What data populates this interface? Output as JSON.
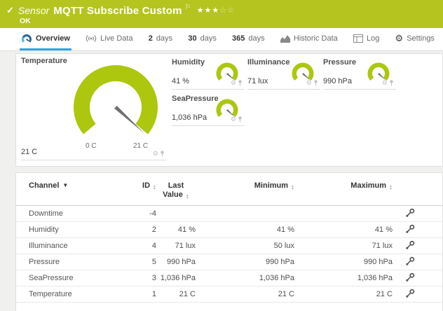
{
  "colors": {
    "status_ok_green": "#b5c41f",
    "gauge_green": "#adc70e",
    "active_tab_blue": "#2aa9e0",
    "needle_gray": "#707070"
  },
  "icons": {
    "check": "✓",
    "flag": "⚐",
    "gear": "⚙",
    "sort_asc": "▲",
    "sort_desc": "▼",
    "channel_sort_arrow": "▼"
  },
  "header": {
    "kind": "Sensor",
    "title": "MQTT Subscribe Custom",
    "status": "OK",
    "rating": {
      "filled": "★★★",
      "empty": "☆☆"
    }
  },
  "tabs": [
    {
      "label": "Overview",
      "active": true
    },
    {
      "label": "Live Data"
    },
    {
      "strong": "2",
      "label": "days"
    },
    {
      "strong": "30",
      "label": "days"
    },
    {
      "strong": "365",
      "label": "days"
    },
    {
      "label": "Historic Data"
    },
    {
      "label": "Log"
    },
    {
      "label": "Settings"
    }
  ],
  "gauges": {
    "primary": {
      "title": "Temperature",
      "value": "21 C",
      "scale_min_label": "0 C",
      "scale_max_label": "21 C"
    },
    "secondary": [
      {
        "title": "Humidity",
        "value": "41 %"
      },
      {
        "title": "Illuminance",
        "value": "71 lux"
      },
      {
        "title": "Pressure",
        "value": "990 hPa"
      },
      {
        "title": "SeaPressure",
        "value": "1,036 hPa"
      }
    ]
  },
  "table": {
    "headers": {
      "channel": "Channel",
      "id": "ID",
      "last_value_line1": "Last",
      "last_value_line2": "Value",
      "minimum": "Minimum",
      "maximum": "Maximum"
    },
    "rows": [
      {
        "channel": "Downtime",
        "id": "-4",
        "last": "",
        "min": "",
        "max": ""
      },
      {
        "channel": "Humidity",
        "id": "2",
        "last": "41 %",
        "min": "41 %",
        "max": "41 %"
      },
      {
        "channel": "Illuminance",
        "id": "4",
        "last": "71 lux",
        "min": "50 lux",
        "max": "71 lux"
      },
      {
        "channel": "Pressure",
        "id": "5",
        "last": "990 hPa",
        "min": "990 hPa",
        "max": "990 hPa"
      },
      {
        "channel": "SeaPressure",
        "id": "3",
        "last": "1,036 hPa",
        "min": "1,036 hPa",
        "max": "1,036 hPa"
      },
      {
        "channel": "Temperature",
        "id": "1",
        "last": "21 C",
        "min": "21 C",
        "max": "21 C"
      }
    ]
  }
}
